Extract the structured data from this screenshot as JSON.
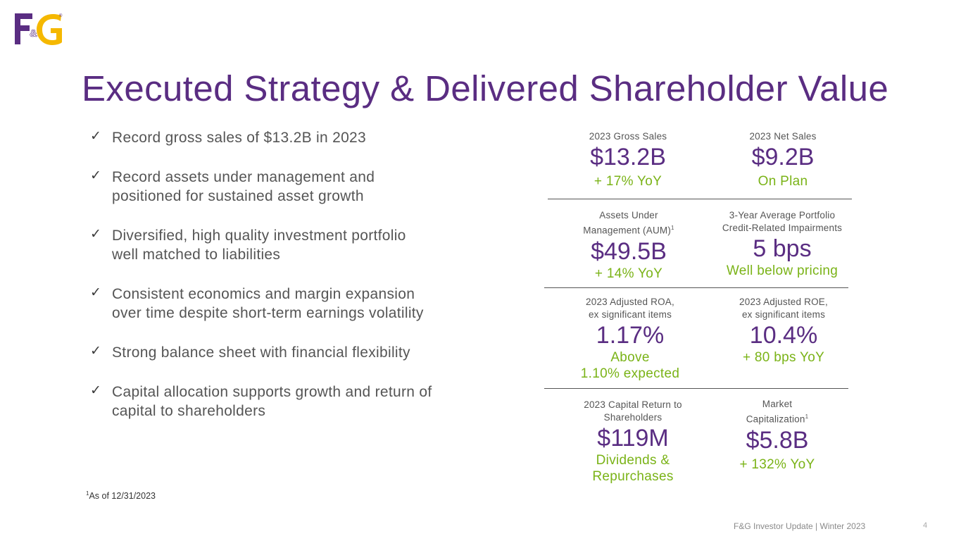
{
  "logo": {
    "alt": "F&G"
  },
  "title": "Executed Strategy & Delivered Shareholder Value",
  "bullets": [
    {
      "line1": "Record gross sales of $13.2B in 2023"
    },
    {
      "line1": "Record assets under management and",
      "line2": "positioned for sustained asset growth"
    },
    {
      "line1": "Diversified, high quality investment portfolio",
      "line2": "well matched to liabilities"
    },
    {
      "line1": "Consistent economics and margin expansion",
      "line2": "over time despite short-term earnings volatility"
    },
    {
      "line1": "Strong balance sheet with financial flexibility"
    },
    {
      "line1": "Capital allocation supports growth and return of",
      "line2": "capital to shareholders"
    }
  ],
  "metrics": {
    "gross_sales": {
      "label": "2023 Gross Sales",
      "value": "$13.2B",
      "note": "+ 17% YoY"
    },
    "net_sales": {
      "label": "2023 Net Sales",
      "value": "$9.2B",
      "note": "On Plan"
    },
    "aum": {
      "label1": "Assets Under",
      "label2": "Management (AUM)",
      "sup": "1",
      "value": "$49.5B",
      "note": "+ 14% YoY"
    },
    "impairments": {
      "label1": "3-Year Average Portfolio",
      "label2": "Credit-Related Impairments",
      "value": "5 bps",
      "note": "Well below pricing"
    },
    "roa": {
      "label1": "2023 Adjusted ROA,",
      "label2": "ex significant items",
      "value": "1.17%",
      "note1": "Above",
      "note2": "1.10% expected"
    },
    "roe": {
      "label1": "2023 Adjusted ROE,",
      "label2": "ex significant items",
      "value": "10.4%",
      "note": "+ 80 bps YoY"
    },
    "capital_return": {
      "label1": "2023 Capital Return to",
      "label2": "Shareholders",
      "value": "$119M",
      "note1": "Dividends &",
      "note2": "Repurchases"
    },
    "market_cap": {
      "label1": "Market",
      "label2": "Capitalization",
      "sup": "1",
      "value": "$5.8B",
      "note": "+ 132% YoY"
    }
  },
  "footnote": {
    "sup": "1",
    "text": "As of 12/31/2023"
  },
  "footer": {
    "text": "F&G Investor Update | Winter 2023",
    "page": "4"
  },
  "colors": {
    "purple": "#5a2d82",
    "gold": "#f5b800",
    "green": "#7ab317",
    "gray_text": "#555555"
  }
}
